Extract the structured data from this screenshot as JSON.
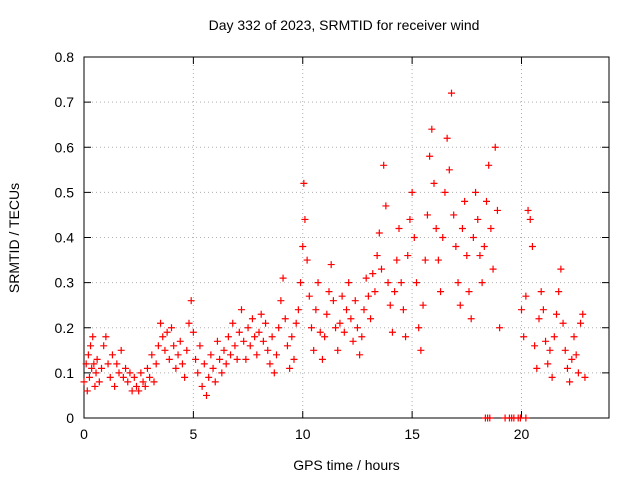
{
  "chart_data": {
    "type": "scatter",
    "title": "Day 332 of 2023, SRMTID for receiver wind",
    "xlabel": "GPS time / hours",
    "ylabel": "SRMTID / TECUs",
    "xlim": [
      0,
      24
    ],
    "ylim": [
      0,
      0.8
    ],
    "xticks": [
      0,
      5,
      10,
      15,
      20
    ],
    "xtick_labels": [
      "0",
      "5",
      "10",
      "15",
      "20"
    ],
    "yticks": [
      0,
      0.1,
      0.2,
      0.3,
      0.4,
      0.5,
      0.6,
      0.7,
      0.8
    ],
    "ytick_labels": [
      "0",
      "0.1",
      "0.2",
      "0.3",
      "0.4",
      "0.5",
      "0.6",
      "0.7",
      "0.8"
    ],
    "grid": true,
    "marker": "plus",
    "color": "#ff0000",
    "series": [
      {
        "name": "SRMTID",
        "points": [
          [
            0.0,
            0.08
          ],
          [
            0.1,
            0.12
          ],
          [
            0.15,
            0.06
          ],
          [
            0.2,
            0.14
          ],
          [
            0.25,
            0.09
          ],
          [
            0.3,
            0.16
          ],
          [
            0.35,
            0.11
          ],
          [
            0.4,
            0.18
          ],
          [
            0.45,
            0.12
          ],
          [
            0.5,
            0.07
          ],
          [
            0.55,
            0.1
          ],
          [
            0.6,
            0.13
          ],
          [
            0.7,
            0.08
          ],
          [
            0.8,
            0.11
          ],
          [
            0.9,
            0.16
          ],
          [
            1.0,
            0.18
          ],
          [
            1.1,
            0.12
          ],
          [
            1.2,
            0.09
          ],
          [
            1.3,
            0.14
          ],
          [
            1.4,
            0.07
          ],
          [
            1.5,
            0.12
          ],
          [
            1.6,
            0.1
          ],
          [
            1.7,
            0.15
          ],
          [
            1.8,
            0.09
          ],
          [
            1.9,
            0.11
          ],
          [
            2.0,
            0.08
          ],
          [
            2.1,
            0.1
          ],
          [
            2.2,
            0.06
          ],
          [
            2.3,
            0.09
          ],
          [
            2.4,
            0.07
          ],
          [
            2.5,
            0.06
          ],
          [
            2.6,
            0.1
          ],
          [
            2.7,
            0.08
          ],
          [
            2.8,
            0.07
          ],
          [
            2.9,
            0.11
          ],
          [
            3.0,
            0.09
          ],
          [
            3.1,
            0.14
          ],
          [
            3.2,
            0.08
          ],
          [
            3.3,
            0.12
          ],
          [
            3.4,
            0.16
          ],
          [
            3.5,
            0.21
          ],
          [
            3.6,
            0.18
          ],
          [
            3.7,
            0.15
          ],
          [
            3.8,
            0.19
          ],
          [
            3.9,
            0.13
          ],
          [
            4.0,
            0.2
          ],
          [
            4.1,
            0.16
          ],
          [
            4.2,
            0.11
          ],
          [
            4.3,
            0.14
          ],
          [
            4.4,
            0.17
          ],
          [
            4.5,
            0.12
          ],
          [
            4.6,
            0.09
          ],
          [
            4.7,
            0.15
          ],
          [
            4.8,
            0.21
          ],
          [
            4.9,
            0.26
          ],
          [
            5.0,
            0.19
          ],
          [
            5.1,
            0.13
          ],
          [
            5.2,
            0.1
          ],
          [
            5.3,
            0.16
          ],
          [
            5.4,
            0.07
          ],
          [
            5.5,
            0.12
          ],
          [
            5.6,
            0.05
          ],
          [
            5.7,
            0.09
          ],
          [
            5.8,
            0.14
          ],
          [
            5.9,
            0.11
          ],
          [
            6.0,
            0.08
          ],
          [
            6.1,
            0.17
          ],
          [
            6.2,
            0.13
          ],
          [
            6.3,
            0.1
          ],
          [
            6.4,
            0.15
          ],
          [
            6.5,
            0.12
          ],
          [
            6.6,
            0.18
          ],
          [
            6.7,
            0.14
          ],
          [
            6.8,
            0.21
          ],
          [
            6.9,
            0.16
          ],
          [
            7.0,
            0.13
          ],
          [
            7.1,
            0.19
          ],
          [
            7.2,
            0.24
          ],
          [
            7.3,
            0.17
          ],
          [
            7.4,
            0.13
          ],
          [
            7.5,
            0.2
          ],
          [
            7.6,
            0.16
          ],
          [
            7.7,
            0.22
          ],
          [
            7.8,
            0.18
          ],
          [
            7.9,
            0.14
          ],
          [
            8.0,
            0.19
          ],
          [
            8.1,
            0.23
          ],
          [
            8.2,
            0.17
          ],
          [
            8.3,
            0.21
          ],
          [
            8.4,
            0.15
          ],
          [
            8.5,
            0.12
          ],
          [
            8.6,
            0.18
          ],
          [
            8.7,
            0.1
          ],
          [
            8.8,
            0.14
          ],
          [
            8.9,
            0.2
          ],
          [
            9.0,
            0.26
          ],
          [
            9.1,
            0.31
          ],
          [
            9.2,
            0.22
          ],
          [
            9.3,
            0.16
          ],
          [
            9.4,
            0.11
          ],
          [
            9.5,
            0.18
          ],
          [
            9.6,
            0.13
          ],
          [
            9.7,
            0.21
          ],
          [
            9.8,
            0.24
          ],
          [
            9.9,
            0.3
          ],
          [
            10.0,
            0.38
          ],
          [
            10.05,
            0.52
          ],
          [
            10.1,
            0.44
          ],
          [
            10.2,
            0.35
          ],
          [
            10.3,
            0.27
          ],
          [
            10.4,
            0.2
          ],
          [
            10.5,
            0.15
          ],
          [
            10.6,
            0.24
          ],
          [
            10.7,
            0.3
          ],
          [
            10.8,
            0.19
          ],
          [
            10.9,
            0.13
          ],
          [
            11.0,
            0.18
          ],
          [
            11.1,
            0.23
          ],
          [
            11.2,
            0.28
          ],
          [
            11.3,
            0.34
          ],
          [
            11.4,
            0.26
          ],
          [
            11.5,
            0.2
          ],
          [
            11.6,
            0.15
          ],
          [
            11.7,
            0.21
          ],
          [
            11.8,
            0.27
          ],
          [
            11.9,
            0.19
          ],
          [
            12.0,
            0.24
          ],
          [
            12.1,
            0.3
          ],
          [
            12.2,
            0.22
          ],
          [
            12.3,
            0.17
          ],
          [
            12.4,
            0.26
          ],
          [
            12.5,
            0.2
          ],
          [
            12.6,
            0.14
          ],
          [
            12.7,
            0.18
          ],
          [
            12.8,
            0.24
          ],
          [
            12.9,
            0.31
          ],
          [
            13.0,
            0.27
          ],
          [
            13.1,
            0.22
          ],
          [
            13.2,
            0.32
          ],
          [
            13.3,
            0.28
          ],
          [
            13.4,
            0.36
          ],
          [
            13.5,
            0.41
          ],
          [
            13.6,
            0.33
          ],
          [
            13.7,
            0.56
          ],
          [
            13.8,
            0.47
          ],
          [
            13.9,
            0.3
          ],
          [
            14.0,
            0.25
          ],
          [
            14.1,
            0.19
          ],
          [
            14.2,
            0.28
          ],
          [
            14.3,
            0.35
          ],
          [
            14.4,
            0.42
          ],
          [
            14.5,
            0.3
          ],
          [
            14.6,
            0.24
          ],
          [
            14.7,
            0.18
          ],
          [
            14.8,
            0.36
          ],
          [
            14.9,
            0.44
          ],
          [
            15.0,
            0.5
          ],
          [
            15.1,
            0.4
          ],
          [
            15.2,
            0.3
          ],
          [
            15.3,
            0.2
          ],
          [
            15.4,
            0.15
          ],
          [
            15.5,
            0.25
          ],
          [
            15.6,
            0.35
          ],
          [
            15.7,
            0.45
          ],
          [
            15.8,
            0.58
          ],
          [
            15.9,
            0.64
          ],
          [
            16.0,
            0.52
          ],
          [
            16.1,
            0.42
          ],
          [
            16.2,
            0.35
          ],
          [
            16.3,
            0.28
          ],
          [
            16.4,
            0.4
          ],
          [
            16.5,
            0.5
          ],
          [
            16.6,
            0.62
          ],
          [
            16.7,
            0.55
          ],
          [
            16.8,
            0.72
          ],
          [
            16.9,
            0.45
          ],
          [
            17.0,
            0.38
          ],
          [
            17.1,
            0.3
          ],
          [
            17.2,
            0.25
          ],
          [
            17.3,
            0.42
          ],
          [
            17.4,
            0.48
          ],
          [
            17.5,
            0.36
          ],
          [
            17.6,
            0.28
          ],
          [
            17.7,
            0.22
          ],
          [
            17.8,
            0.4
          ],
          [
            17.9,
            0.5
          ],
          [
            18.0,
            0.44
          ],
          [
            18.1,
            0.36
          ],
          [
            18.2,
            0.3
          ],
          [
            18.3,
            0.38
          ],
          [
            18.4,
            0.48
          ],
          [
            18.5,
            0.56
          ],
          [
            18.6,
            0.42
          ],
          [
            18.7,
            0.33
          ],
          [
            18.8,
            0.6
          ],
          [
            18.9,
            0.46
          ],
          [
            19.0,
            0.2
          ],
          [
            20.0,
            0.24
          ],
          [
            20.1,
            0.18
          ],
          [
            20.2,
            0.27
          ],
          [
            20.3,
            0.46
          ],
          [
            20.4,
            0.44
          ],
          [
            20.5,
            0.38
          ],
          [
            20.6,
            0.16
          ],
          [
            20.7,
            0.11
          ],
          [
            20.8,
            0.22
          ],
          [
            20.9,
            0.28
          ],
          [
            21.0,
            0.24
          ],
          [
            21.1,
            0.17
          ],
          [
            21.2,
            0.12
          ],
          [
            21.3,
            0.15
          ],
          [
            21.4,
            0.09
          ],
          [
            21.5,
            0.18
          ],
          [
            21.6,
            0.23
          ],
          [
            21.7,
            0.28
          ],
          [
            21.8,
            0.33
          ],
          [
            21.9,
            0.21
          ],
          [
            22.0,
            0.15
          ],
          [
            22.1,
            0.11
          ],
          [
            22.2,
            0.08
          ],
          [
            22.3,
            0.13
          ],
          [
            22.4,
            0.18
          ],
          [
            22.5,
            0.14
          ],
          [
            22.6,
            0.1
          ],
          [
            22.7,
            0.21
          ],
          [
            22.8,
            0.23
          ],
          [
            22.9,
            0.09
          ],
          [
            18.35,
            0.0
          ],
          [
            18.45,
            0.0
          ],
          [
            18.55,
            0.0
          ],
          [
            19.25,
            0.0
          ],
          [
            19.45,
            0.0
          ],
          [
            19.55,
            0.0
          ],
          [
            19.65,
            0.0
          ],
          [
            19.85,
            0.0
          ],
          [
            19.95,
            0.0
          ],
          [
            20.2,
            0.0
          ]
        ]
      }
    ]
  }
}
